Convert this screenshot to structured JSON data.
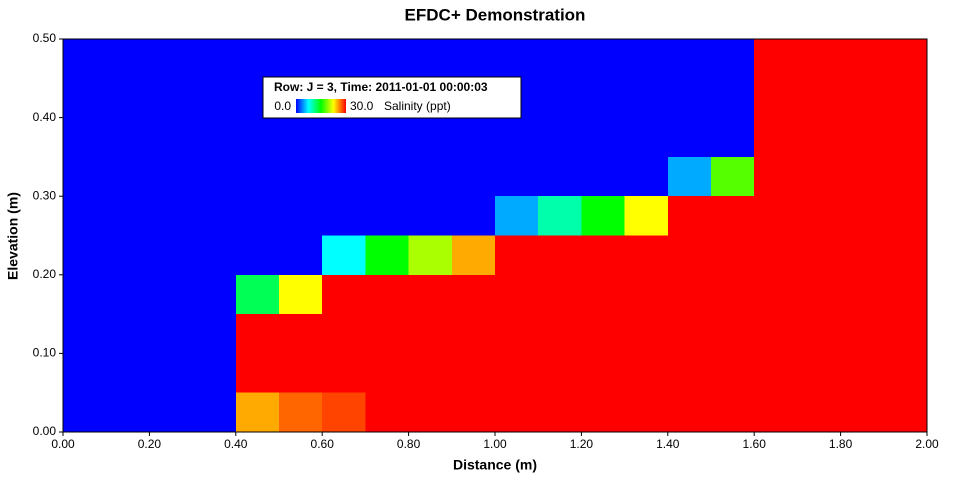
{
  "chart_data": {
    "type": "heatmap",
    "title": "EFDC+ Demonstration",
    "x_label": "Distance (m)",
    "y_label": "Elevation (m)",
    "legend_title": "Row: J = 3, Time: 2011-01-01 00:00:03",
    "colorbar_label": "Salinity (ppt)",
    "colorbar_range": [
      {
        "value": 0,
        "label": "0.0"
      },
      {
        "value": 30,
        "label": "30.0"
      }
    ],
    "colors": [
      "#0000ff",
      "#00ffff",
      "#00ff00",
      "#ffff00",
      "#ff0000"
    ],
    "xbins": [
      0,
      0.1,
      0.2,
      0.3,
      0.4,
      0.5,
      0.6,
      0.7,
      0.8,
      0.9,
      1.0,
      1.1,
      1.2,
      1.3,
      1.4,
      1.5,
      1.6,
      1.7,
      1.8,
      1.9,
      2.0
    ],
    "ybins": [
      0,
      0.05,
      0.1,
      0.15,
      0.2,
      0.25,
      0.3,
      0.35,
      0.4,
      0.45,
      0.5
    ],
    "values": [
      [
        0,
        0,
        0,
        0,
        25,
        27,
        28,
        30,
        30,
        30,
        30,
        30,
        30,
        30,
        30,
        30,
        30,
        30,
        30,
        30
      ],
      [
        0,
        0,
        0,
        0,
        30,
        30,
        30,
        30,
        30,
        30,
        30,
        30,
        30,
        30,
        30,
        30,
        30,
        30,
        30,
        30
      ],
      [
        0,
        0,
        0,
        0,
        30,
        30,
        30,
        30,
        30,
        30,
        30,
        30,
        30,
        30,
        30,
        30,
        30,
        30,
        30,
        30
      ],
      [
        0,
        0,
        0,
        0,
        12.5,
        22.5,
        30,
        30,
        30,
        30,
        30,
        30,
        30,
        30,
        30,
        30,
        30,
        30,
        30,
        30
      ],
      [
        0,
        0,
        0,
        0,
        0,
        0,
        7.5,
        15,
        20,
        25,
        30,
        30,
        30,
        30,
        30,
        30,
        30,
        30,
        30,
        30
      ],
      [
        0,
        0,
        0,
        0,
        0,
        0,
        0,
        0,
        0,
        0,
        5,
        10,
        15,
        22.5,
        30,
        30,
        30,
        30,
        30,
        30
      ],
      [
        0,
        0,
        0,
        0,
        0,
        0,
        0,
        0,
        0,
        0,
        0,
        0,
        0,
        0,
        5,
        17.5,
        30,
        30,
        30,
        30
      ],
      [
        0,
        0,
        0,
        0,
        0,
        0,
        0,
        0,
        0,
        0,
        0,
        0,
        0,
        0,
        0,
        0,
        30,
        30,
        30,
        30
      ],
      [
        0,
        0,
        0,
        0,
        0,
        0,
        0,
        0,
        0,
        0,
        0,
        0,
        0,
        0,
        0,
        0,
        30,
        30,
        30,
        30
      ],
      [
        0,
        0,
        0,
        0,
        0,
        0,
        0,
        0,
        0,
        0,
        0,
        0,
        0,
        0,
        0,
        0,
        30,
        30,
        30,
        30
      ]
    ],
    "xlim": [
      0,
      2
    ],
    "ylim": [
      0,
      0.5
    ],
    "xticks": [
      {
        "value": 0,
        "label": "0.00"
      },
      {
        "value": 0.2,
        "label": "0.20"
      },
      {
        "value": 0.4,
        "label": "0.40"
      },
      {
        "value": 0.6,
        "label": "0.60"
      },
      {
        "value": 0.8,
        "label": "0.80"
      },
      {
        "value": 1.0,
        "label": "1.00"
      },
      {
        "value": 1.2,
        "label": "1.20"
      },
      {
        "value": 1.4,
        "label": "1.40"
      },
      {
        "value": 1.6,
        "label": "1.60"
      },
      {
        "value": 1.8,
        "label": "1.80"
      },
      {
        "value": 2.0,
        "label": "2.00"
      }
    ],
    "yticks": [
      {
        "value": 0,
        "label": "0.00"
      },
      {
        "value": 0.1,
        "label": "0.10"
      },
      {
        "value": 0.2,
        "label": "0.20"
      },
      {
        "value": 0.3,
        "label": "0.30"
      },
      {
        "value": 0.4,
        "label": "0.40"
      },
      {
        "value": 0.5,
        "label": "0.50"
      }
    ]
  }
}
